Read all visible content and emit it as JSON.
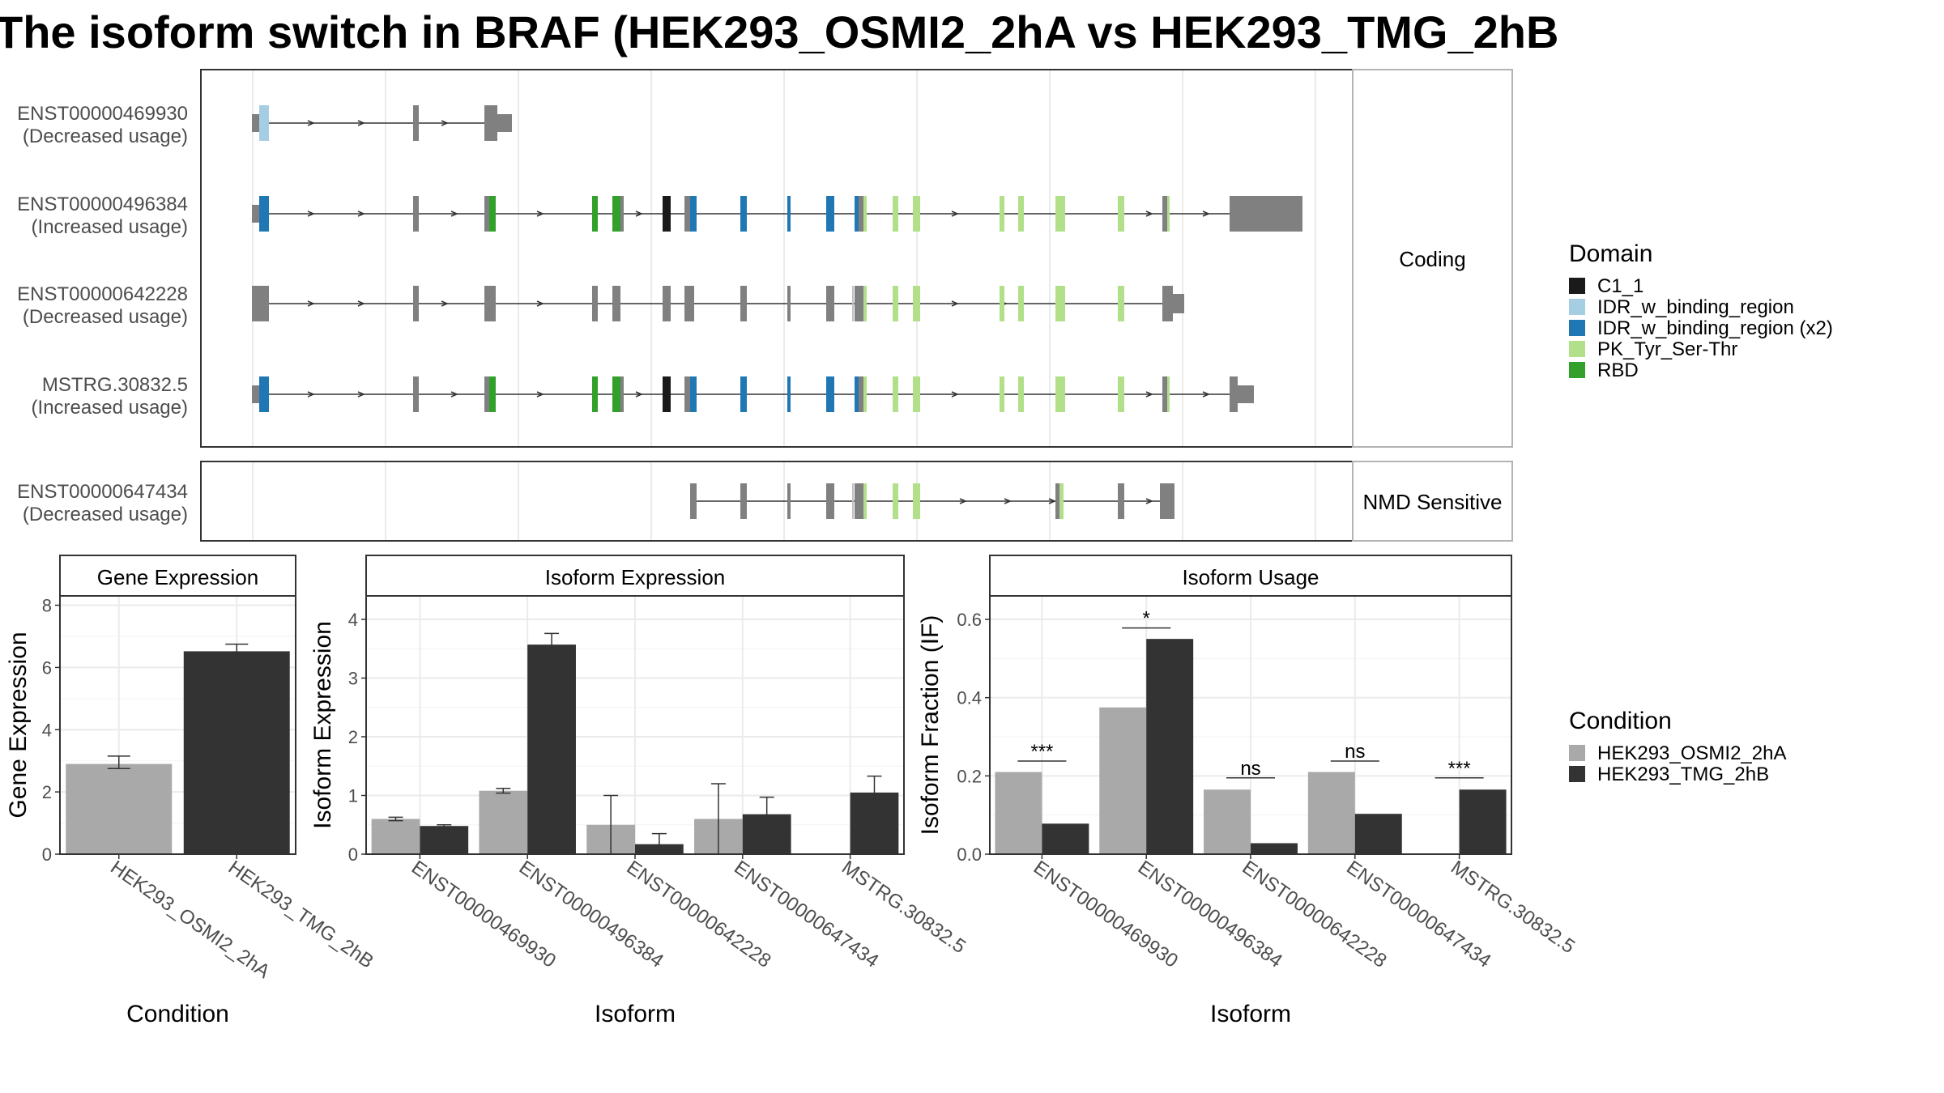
{
  "title": "The isoform switch in BRAF (HEK293_OSMI2_2hA vs HEK293_TMG_2hB",
  "colors": {
    "exon": "#808080",
    "C1_1": "#1a1a1a",
    "IDR_w_binding_region": "#a6cee3",
    "IDR_w_binding_region (x2)": "#1f78b4",
    "PK_Tyr_Ser-Thr": "#b2df8a",
    "RBD": "#33a02c",
    "cond1": "#a9a9a9",
    "cond2": "#333333"
  },
  "structure": {
    "facets": [
      "Coding",
      "NMD Sensitive"
    ],
    "transcripts": [
      {
        "id": "ENST00000469930",
        "label": "(Decreased usage)",
        "facet": "Coding"
      },
      {
        "id": "ENST00000496384",
        "label": "(Increased usage)",
        "facet": "Coding"
      },
      {
        "id": "ENST00000642228",
        "label": "(Decreased usage)",
        "facet": "Coding"
      },
      {
        "id": "MSTRG.30832.5",
        "label": "(Increased usage)",
        "facet": "Coding"
      },
      {
        "id": "ENST00000647434",
        "label": "(Decreased usage)",
        "facet": "NMD Sensitive"
      }
    ]
  },
  "legend_domain": {
    "title": "Domain",
    "items": [
      "C1_1",
      "IDR_w_binding_region",
      "IDR_w_binding_region (x2)",
      "PK_Tyr_Ser-Thr",
      "RBD"
    ]
  },
  "legend_condition": {
    "title": "Condition",
    "items": [
      "HEK293_OSMI2_2hA",
      "HEK293_TMG_2hB"
    ]
  },
  "chart_data": [
    {
      "type": "bar",
      "title": "Gene Expression",
      "xlabel": "Condition",
      "ylabel": "Gene Expression",
      "ylim": [
        0,
        8.3
      ],
      "yticks": [
        0,
        2,
        4,
        6,
        8
      ],
      "categories": [
        "HEK293_OSMI2_2hA",
        "HEK293_TMG_2hB"
      ],
      "values": [
        2.9,
        6.52
      ],
      "errors": [
        [
          2.75,
          3.15
        ],
        [
          6.35,
          6.75
        ]
      ]
    },
    {
      "type": "bar",
      "title": "Isoform Expression",
      "xlabel": "Isoform",
      "ylabel": "Isoform Expression",
      "ylim": [
        0,
        4.4
      ],
      "yticks": [
        0,
        1,
        2,
        3,
        4
      ],
      "categories": [
        "ENST00000469930",
        "ENST00000496384",
        "ENST00000642228",
        "ENST00000647434",
        "MSTRG.30832.5"
      ],
      "series": [
        {
          "name": "HEK293_OSMI2_2hA",
          "values": [
            0.6,
            1.08,
            0.5,
            0.6,
            0.01
          ],
          "errors": [
            [
              0.57,
              0.63
            ],
            [
              1.04,
              1.12
            ],
            [
              0.0,
              1.0
            ],
            [
              0.0,
              1.2
            ],
            [
              0.0,
              0.0
            ]
          ]
        },
        {
          "name": "HEK293_TMG_2hB",
          "values": [
            0.48,
            3.57,
            0.17,
            0.68,
            1.05
          ],
          "errors": [
            [
              0.46,
              0.5
            ],
            [
              3.38,
              3.76
            ],
            [
              0.0,
              0.35
            ],
            [
              0.38,
              0.97
            ],
            [
              0.78,
              1.33
            ]
          ]
        }
      ]
    },
    {
      "type": "bar",
      "title": "Isoform Usage",
      "xlabel": "Isoform",
      "ylabel": "Isoform Fraction (IF)",
      "ylim": [
        0,
        0.66
      ],
      "yticks": [
        "0.0",
        "0.2",
        "0.4",
        "0.6"
      ],
      "categories": [
        "ENST00000469930",
        "ENST00000496384",
        "ENST00000642228",
        "ENST00000647434",
        "MSTRG.30832.5"
      ],
      "series": [
        {
          "name": "HEK293_OSMI2_2hA",
          "values": [
            0.21,
            0.375,
            0.165,
            0.21,
            0.0
          ]
        },
        {
          "name": "HEK293_TMG_2hB",
          "values": [
            0.078,
            0.55,
            0.028,
            0.103,
            0.165
          ]
        }
      ],
      "significance": [
        "***",
        "*",
        "ns",
        "ns",
        "***"
      ],
      "sig_bar_at": [
        0.238,
        0.578,
        0.195,
        0.238,
        0.195
      ]
    }
  ]
}
